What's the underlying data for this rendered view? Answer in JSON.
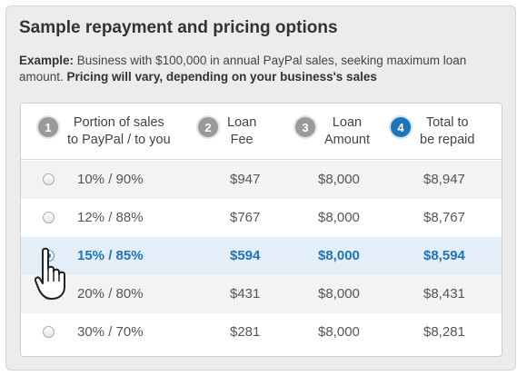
{
  "title": "Sample repayment and pricing options",
  "subtitle": {
    "example_label": "Example:",
    "example_text": " Business with $100,000 in annual PayPal sales, seeking maximum loan amount. ",
    "pricing_note": "Pricing will vary, depending on your business's sales"
  },
  "table": {
    "headers": [
      {
        "number": "1",
        "line1": "Portion of sales",
        "line2": "to PayPal / to you",
        "active": false
      },
      {
        "number": "2",
        "line1": "Loan",
        "line2": "Fee",
        "active": false
      },
      {
        "number": "3",
        "line1": "Loan",
        "line2": "Amount",
        "active": false
      },
      {
        "number": "4",
        "line1": "Total to",
        "line2": "be repaid",
        "active": true
      }
    ],
    "rows": [
      {
        "portion": "10%  /  90%",
        "fee": "$947",
        "amount": "$8,000",
        "total": "$8,947",
        "selected": false
      },
      {
        "portion": "12%  /  88%",
        "fee": "$767",
        "amount": "$8,000",
        "total": "$8,767",
        "selected": false
      },
      {
        "portion": "15%  /  85%",
        "fee": "$594",
        "amount": "$8,000",
        "total": "$8,594",
        "selected": true
      },
      {
        "portion": "20%  /  80%",
        "fee": "$431",
        "amount": "$8,000",
        "total": "$8,431",
        "selected": false
      },
      {
        "portion": "30%  /  70%",
        "fee": "$281",
        "amount": "$8,000",
        "total": "$8,281",
        "selected": false
      }
    ]
  },
  "colors": {
    "accent": "#1f74b8",
    "selected_row": "#e3eef8",
    "panel_bg": "#ececec"
  },
  "icons": {
    "cursor": "hand-pointer-icon",
    "row_selector": "radio-button-icon"
  }
}
